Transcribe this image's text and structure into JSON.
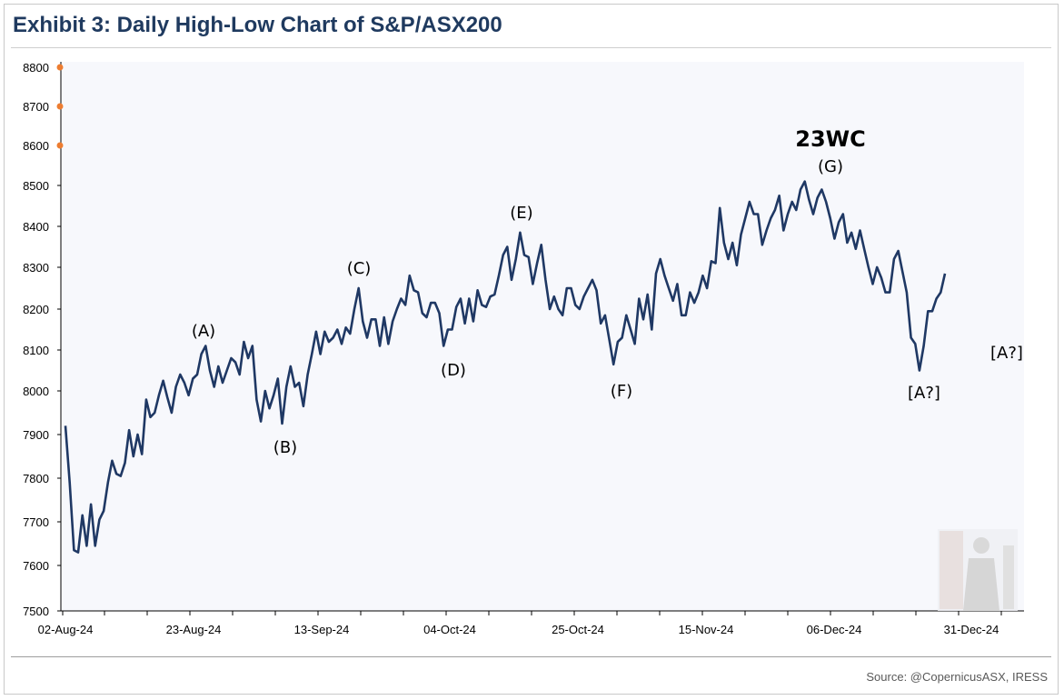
{
  "title": "Exhibit 3: Daily High-Low Chart of S&P/ASX200",
  "source": "Source: @CopernicusASX, IRESS",
  "chart_data": {
    "type": "line",
    "y_ticks": [
      7500,
      7600,
      7700,
      7800,
      7900,
      8000,
      8100,
      8200,
      8300,
      8400,
      8500,
      8600,
      8700,
      8800
    ],
    "y_tick_labels": [
      "7500",
      "7600",
      "7700",
      "7800",
      "7900",
      "8000",
      "8100",
      "8200",
      "8300",
      "8400",
      "8500",
      "8600",
      "8700",
      "8800"
    ],
    "ylim": [
      7500,
      8800
    ],
    "x_tick_labels": [
      "02-Aug-24",
      "23-Aug-24",
      "13-Sep-24",
      "04-Oct-24",
      "25-Oct-24",
      "15-Nov-24",
      "06-Dec-24",
      "31-Dec-24"
    ],
    "grid": false,
    "series": [
      {
        "color": "#1f3864",
        "values": [
          7920,
          7790,
          7635,
          7630,
          7715,
          7645,
          7740,
          7645,
          7705,
          7725,
          7790,
          7840,
          7810,
          7805,
          7835,
          7910,
          7850,
          7900,
          7855,
          7980,
          7940,
          7950,
          7990,
          8025,
          7985,
          7950,
          8010,
          8040,
          8020,
          7990,
          8030,
          8040,
          8090,
          8110,
          8050,
          8010,
          8060,
          8020,
          8050,
          8080,
          8070,
          8040,
          8120,
          8080,
          8110,
          7980,
          7930,
          8000,
          7960,
          7990,
          8030,
          7925,
          8010,
          8060,
          8010,
          8020,
          7965,
          8040,
          8090,
          8145,
          8090,
          8145,
          8120,
          8130,
          8150,
          8115,
          8155,
          8140,
          8200,
          8250,
          8170,
          8130,
          8175,
          8175,
          8110,
          8180,
          8115,
          8170,
          8200,
          8225,
          8210,
          8280,
          8245,
          8240,
          8190,
          8180,
          8215,
          8215,
          8190,
          8110,
          8150,
          8150,
          8205,
          8225,
          8165,
          8225,
          8170,
          8245,
          8210,
          8205,
          8230,
          8235,
          8280,
          8330,
          8350,
          8270,
          8320,
          8385,
          8330,
          8325,
          8260,
          8310,
          8355,
          8270,
          8200,
          8230,
          8200,
          8185,
          8250,
          8250,
          8210,
          8200,
          8230,
          8250,
          8270,
          8245,
          8165,
          8185,
          8125,
          8065,
          8120,
          8130,
          8185,
          8150,
          8115,
          8225,
          8175,
          8235,
          8150,
          8285,
          8320,
          8280,
          8250,
          8220,
          8260,
          8185,
          8185,
          8240,
          8215,
          8240,
          8280,
          8250,
          8315,
          8310,
          8445,
          8360,
          8320,
          8360,
          8305,
          8380,
          8420,
          8460,
          8430,
          8430,
          8355,
          8390,
          8420,
          8440,
          8475,
          8390,
          8430,
          8460,
          8440,
          8490,
          8510,
          8465,
          8430,
          8470,
          8490,
          8460,
          8420,
          8370,
          8410,
          8430,
          8360,
          8385,
          8345,
          8390,
          8345,
          8300,
          8260,
          8300,
          8275,
          8240,
          8240,
          8320,
          8340,
          8290,
          8240,
          8130,
          8115,
          8050,
          8110,
          8195,
          8195,
          8225,
          8240,
          8285
        ]
      }
    ],
    "annotations": [
      "(A)",
      "(B)",
      "(C)",
      "(D)",
      "(E)",
      "(F)",
      "(G)",
      "23WC",
      "[A?]",
      "[A?]"
    ],
    "axis_markers": [
      8600,
      8700,
      8800
    ],
    "marker_color": "#ed7d31",
    "plot_background": "#f7f8fc"
  }
}
